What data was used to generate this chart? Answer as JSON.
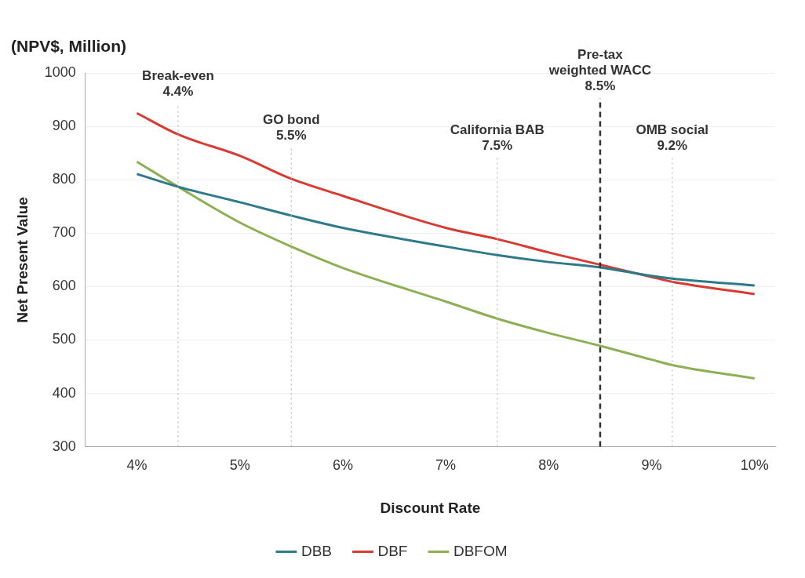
{
  "chart_data": {
    "type": "line",
    "title": "(NPV$, Million)",
    "xlabel": "Discount Rate",
    "ylabel": "Net Present Value",
    "x": [
      4,
      4.4,
      5,
      5.5,
      6,
      7,
      7.5,
      8,
      8.5,
      9,
      9.2,
      10
    ],
    "series": [
      {
        "name": "DBB",
        "color": "#2e7a8a",
        "values": [
          811,
          787,
          758,
          733,
          710,
          675,
          659,
          646,
          636,
          620,
          615,
          602
        ]
      },
      {
        "name": "DBF",
        "color": "#d93a32",
        "values": [
          925,
          885,
          845,
          802,
          770,
          710,
          689,
          664,
          641,
          618,
          609,
          586
        ]
      },
      {
        "name": "DBFOM",
        "color": "#8db055",
        "values": [
          834,
          787,
          720,
          675,
          635,
          572,
          540,
          513,
          489,
          463,
          453,
          428
        ]
      }
    ],
    "xlim": [
      3.5,
      10.2
    ],
    "xticks": [
      {
        "value": 4,
        "label": "4%"
      },
      {
        "value": 5,
        "label": "5%"
      },
      {
        "value": 6,
        "label": "6%"
      },
      {
        "value": 7,
        "label": "7%"
      },
      {
        "value": 8,
        "label": "8%"
      },
      {
        "value": 9,
        "label": "9%"
      },
      {
        "value": 10,
        "label": "10%"
      }
    ],
    "ylim": [
      300,
      1000
    ],
    "yticks": [
      300,
      400,
      500,
      600,
      700,
      800,
      900,
      1000
    ],
    "grid": "y",
    "legend": "bottom",
    "marker": "none",
    "line_style": "solid",
    "ref_lines": [
      {
        "axis": "x",
        "value": 4.4,
        "label": "Break-even\n4.4%",
        "color": "#bbbbbb",
        "line_style": "dotted"
      },
      {
        "axis": "x",
        "value": 5.5,
        "label": "GO bond\n5.5%",
        "color": "#bbbbbb",
        "line_style": "dotted"
      },
      {
        "axis": "x",
        "value": 7.5,
        "label": "California BAB\n7.5%",
        "color": "#bbbbbb",
        "line_style": "dotted"
      },
      {
        "axis": "x",
        "value": 8.5,
        "label": "Pre-tax\nweighted WACC\n8.5%",
        "color": "#333333",
        "line_style": "dashed"
      },
      {
        "axis": "x",
        "value": 9.2,
        "label": "OMB social\n9.2%",
        "color": "#bbbbbb",
        "line_style": "dotted"
      }
    ]
  }
}
